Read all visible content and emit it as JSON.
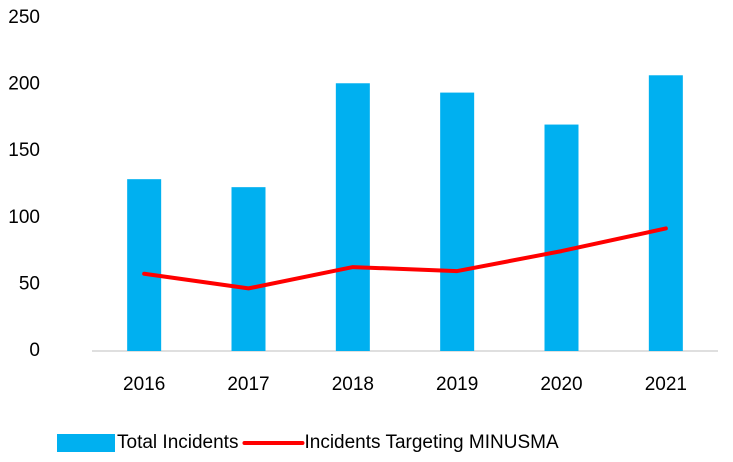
{
  "chart_data": {
    "type": "bar_line",
    "categories": [
      "2016",
      "2017",
      "2018",
      "2019",
      "2020",
      "2021"
    ],
    "series": [
      {
        "name": "Total Incidents",
        "type": "bar",
        "color": "#00b0f0",
        "values": [
          129,
          123,
          201,
          194,
          170,
          207
        ]
      },
      {
        "name": "Incidents Targeting MINUSMA",
        "type": "line",
        "color": "#ff0000",
        "values": [
          58,
          47,
          63,
          60,
          75,
          92
        ]
      }
    ],
    "ylim": [
      0,
      250
    ],
    "yticks": [
      0,
      50,
      100,
      150,
      200,
      250
    ],
    "grid": false,
    "legend": "bottom"
  }
}
